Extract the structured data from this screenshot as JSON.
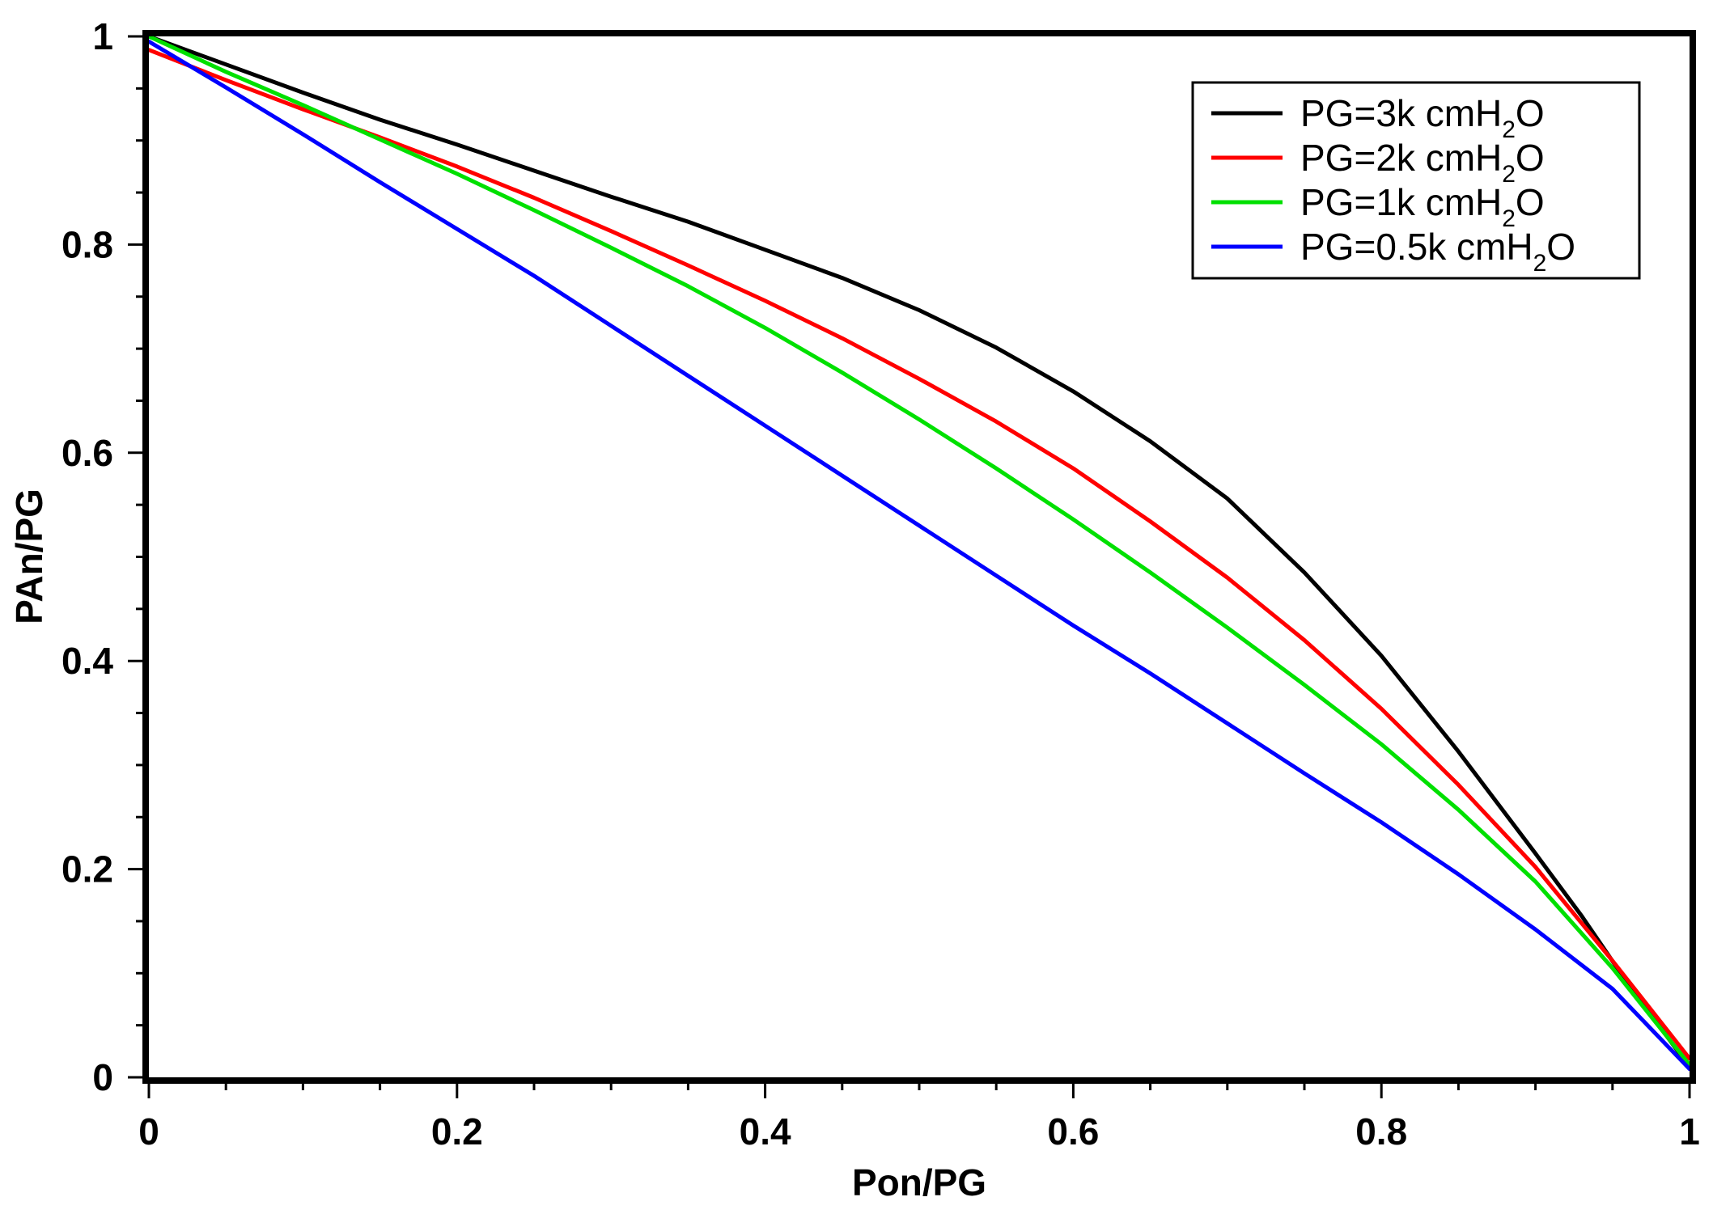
{
  "chart_data": {
    "type": "line",
    "title": "",
    "xlabel": "Pon/PG",
    "ylabel": "PAn/PG",
    "xlim": [
      0,
      1
    ],
    "ylim": [
      0,
      1
    ],
    "xticks": [
      "0",
      "0.2",
      "0.4",
      "0.6",
      "0.8",
      "1"
    ],
    "yticks": [
      "0",
      "0.2",
      "0.4",
      "0.6",
      "0.8",
      "1"
    ],
    "grid": false,
    "legend_position": "top-right",
    "series": [
      {
        "name": "PG=3k cmH2O",
        "label_main": "PG=3k cmH",
        "label_sub": "2",
        "label_tail": "O",
        "color": "#000000",
        "x": [
          0,
          0.05,
          0.1,
          0.15,
          0.2,
          0.25,
          0.3,
          0.35,
          0.4,
          0.45,
          0.5,
          0.55,
          0.6,
          0.65,
          0.7,
          0.75,
          0.8,
          0.85,
          0.9,
          0.93,
          0.96,
          1.0
        ],
        "y": [
          1.0,
          0.973,
          0.946,
          0.92,
          0.896,
          0.871,
          0.846,
          0.822,
          0.795,
          0.768,
          0.737,
          0.701,
          0.659,
          0.611,
          0.556,
          0.485,
          0.405,
          0.313,
          0.215,
          0.155,
          0.09,
          0.01
        ]
      },
      {
        "name": "PG=2k cmH2O",
        "label_main": "PG=2k cmH",
        "label_sub": "2",
        "label_tail": "O",
        "color": "#ff0000",
        "x": [
          0,
          0.05,
          0.1,
          0.15,
          0.2,
          0.25,
          0.3,
          0.35,
          0.4,
          0.45,
          0.5,
          0.55,
          0.6,
          0.65,
          0.7,
          0.75,
          0.8,
          0.85,
          0.9,
          0.95,
          1.0
        ],
        "y": [
          0.987,
          0.958,
          0.93,
          0.903,
          0.875,
          0.845,
          0.813,
          0.78,
          0.746,
          0.71,
          0.671,
          0.63,
          0.585,
          0.534,
          0.48,
          0.42,
          0.354,
          0.281,
          0.202,
          0.112,
          0.018
        ]
      },
      {
        "name": "PG=1k cmH2O",
        "label_main": "PG=1k cmH",
        "label_sub": "2",
        "label_tail": "O",
        "color": "#00e000",
        "x": [
          0,
          0.05,
          0.1,
          0.15,
          0.2,
          0.25,
          0.3,
          0.35,
          0.4,
          0.45,
          0.5,
          0.55,
          0.6,
          0.65,
          0.7,
          0.75,
          0.8,
          0.85,
          0.9,
          0.95,
          1.0
        ],
        "y": [
          1.0,
          0.966,
          0.934,
          0.901,
          0.868,
          0.833,
          0.797,
          0.76,
          0.72,
          0.677,
          0.632,
          0.585,
          0.536,
          0.485,
          0.432,
          0.377,
          0.32,
          0.257,
          0.188,
          0.105,
          0.012
        ]
      },
      {
        "name": "PG=0.5k cmH2O",
        "label_main": "PG=0.5k cmH",
        "label_sub": "2",
        "label_tail": "O",
        "color": "#0000ff",
        "x": [
          0,
          0.05,
          0.1,
          0.15,
          0.2,
          0.25,
          0.3,
          0.35,
          0.4,
          0.45,
          0.5,
          0.55,
          0.6,
          0.65,
          0.7,
          0.75,
          0.8,
          0.85,
          0.9,
          0.95,
          1.0
        ],
        "y": [
          0.995,
          0.951,
          0.906,
          0.86,
          0.815,
          0.77,
          0.722,
          0.674,
          0.626,
          0.578,
          0.53,
          0.482,
          0.434,
          0.388,
          0.34,
          0.292,
          0.245,
          0.195,
          0.142,
          0.085,
          0.008
        ]
      }
    ]
  }
}
